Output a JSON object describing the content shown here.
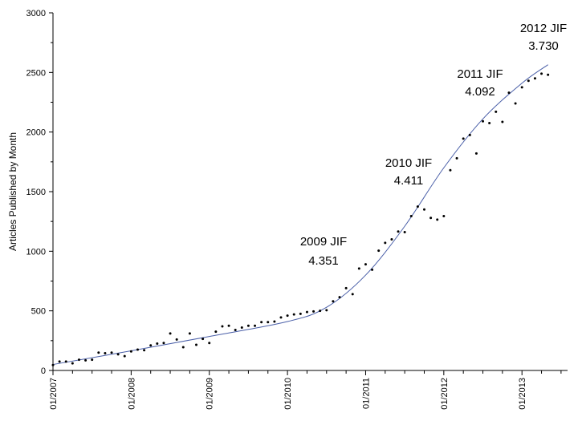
{
  "chart_data": {
    "type": "scatter",
    "title": "",
    "xlabel": "",
    "ylabel": "Articles Published by Month",
    "ylim": [
      0,
      3000
    ],
    "yticks": [
      0,
      500,
      1000,
      1500,
      2000,
      2500,
      3000
    ],
    "xlim": [
      "2007-01",
      "2013-08"
    ],
    "xtick_values": [
      "2007-01",
      "2008-01",
      "2009-01",
      "2010-01",
      "2011-01",
      "2012-01",
      "2013-01"
    ],
    "xtick_labels": [
      "01/2007",
      "01/2008",
      "01/2009",
      "01/2010",
      "01/2011",
      "01/2012",
      "01/2013"
    ],
    "grid": false,
    "legend": "none",
    "colors": {
      "points": "#000000",
      "fit_line": "#4a5fa8"
    },
    "points": [
      {
        "x": "2007-01",
        "y": 45
      },
      {
        "x": "2007-02",
        "y": 75
      },
      {
        "x": "2007-03",
        "y": 75
      },
      {
        "x": "2007-04",
        "y": 60
      },
      {
        "x": "2007-05",
        "y": 90
      },
      {
        "x": "2007-06",
        "y": 85
      },
      {
        "x": "2007-07",
        "y": 90
      },
      {
        "x": "2007-08",
        "y": 150
      },
      {
        "x": "2007-09",
        "y": 145
      },
      {
        "x": "2007-10",
        "y": 150
      },
      {
        "x": "2007-11",
        "y": 135
      },
      {
        "x": "2007-12",
        "y": 120
      },
      {
        "x": "2008-01",
        "y": 160
      },
      {
        "x": "2008-02",
        "y": 175
      },
      {
        "x": "2008-03",
        "y": 170
      },
      {
        "x": "2008-04",
        "y": 210
      },
      {
        "x": "2008-05",
        "y": 225
      },
      {
        "x": "2008-06",
        "y": 230
      },
      {
        "x": "2008-07",
        "y": 310
      },
      {
        "x": "2008-08",
        "y": 260
      },
      {
        "x": "2008-09",
        "y": 195
      },
      {
        "x": "2008-10",
        "y": 310
      },
      {
        "x": "2008-11",
        "y": 215
      },
      {
        "x": "2008-12",
        "y": 265
      },
      {
        "x": "2009-01",
        "y": 230
      },
      {
        "x": "2009-02",
        "y": 325
      },
      {
        "x": "2009-03",
        "y": 370
      },
      {
        "x": "2009-04",
        "y": 375
      },
      {
        "x": "2009-05",
        "y": 340
      },
      {
        "x": "2009-06",
        "y": 360
      },
      {
        "x": "2009-07",
        "y": 375
      },
      {
        "x": "2009-08",
        "y": 375
      },
      {
        "x": "2009-09",
        "y": 405
      },
      {
        "x": "2009-10",
        "y": 405
      },
      {
        "x": "2009-11",
        "y": 410
      },
      {
        "x": "2009-12",
        "y": 445
      },
      {
        "x": "2010-01",
        "y": 460
      },
      {
        "x": "2010-02",
        "y": 470
      },
      {
        "x": "2010-03",
        "y": 475
      },
      {
        "x": "2010-04",
        "y": 490
      },
      {
        "x": "2010-05",
        "y": 495
      },
      {
        "x": "2010-06",
        "y": 500
      },
      {
        "x": "2010-07",
        "y": 505
      },
      {
        "x": "2010-08",
        "y": 580
      },
      {
        "x": "2010-09",
        "y": 615
      },
      {
        "x": "2010-10",
        "y": 690
      },
      {
        "x": "2010-11",
        "y": 640
      },
      {
        "x": "2010-12",
        "y": 855
      },
      {
        "x": "2011-01",
        "y": 890
      },
      {
        "x": "2011-02",
        "y": 845
      },
      {
        "x": "2011-03",
        "y": 1005
      },
      {
        "x": "2011-04",
        "y": 1070
      },
      {
        "x": "2011-05",
        "y": 1100
      },
      {
        "x": "2011-06",
        "y": 1165
      },
      {
        "x": "2011-07",
        "y": 1160
      },
      {
        "x": "2011-08",
        "y": 1295
      },
      {
        "x": "2011-09",
        "y": 1375
      },
      {
        "x": "2011-10",
        "y": 1350
      },
      {
        "x": "2011-11",
        "y": 1280
      },
      {
        "x": "2011-12",
        "y": 1265
      },
      {
        "x": "2012-01",
        "y": 1295
      },
      {
        "x": "2012-02",
        "y": 1680
      },
      {
        "x": "2012-03",
        "y": 1780
      },
      {
        "x": "2012-04",
        "y": 1945
      },
      {
        "x": "2012-05",
        "y": 1975
      },
      {
        "x": "2012-06",
        "y": 1820
      },
      {
        "x": "2012-07",
        "y": 2090
      },
      {
        "x": "2012-08",
        "y": 2075
      },
      {
        "x": "2012-09",
        "y": 2170
      },
      {
        "x": "2012-10",
        "y": 2085
      },
      {
        "x": "2012-11",
        "y": 2330
      },
      {
        "x": "2012-12",
        "y": 2240
      },
      {
        "x": "2013-01",
        "y": 2375
      },
      {
        "x": "2013-02",
        "y": 2430
      },
      {
        "x": "2013-03",
        "y": 2450
      },
      {
        "x": "2013-04",
        "y": 2490
      },
      {
        "x": "2013-05",
        "y": 2480
      }
    ],
    "fit_line": [
      {
        "x": "2007-01",
        "y": 50
      },
      {
        "x": "2008-01",
        "y": 165
      },
      {
        "x": "2009-01",
        "y": 285
      },
      {
        "x": "2010-01",
        "y": 410
      },
      {
        "x": "2010-07",
        "y": 530
      },
      {
        "x": "2011-01",
        "y": 800
      },
      {
        "x": "2011-07",
        "y": 1210
      },
      {
        "x": "2012-01",
        "y": 1700
      },
      {
        "x": "2012-07",
        "y": 2110
      },
      {
        "x": "2013-01",
        "y": 2410
      },
      {
        "x": "2013-05",
        "y": 2565
      }
    ],
    "annotations": [
      {
        "line1": "2009 JIF",
        "line2": "4.351"
      },
      {
        "line1": "2010 JIF",
        "line2": "4.411"
      },
      {
        "line1": "2011 JIF",
        "line2": "4.092"
      },
      {
        "line1": "2012 JIF",
        "line2": "3.730"
      }
    ]
  }
}
